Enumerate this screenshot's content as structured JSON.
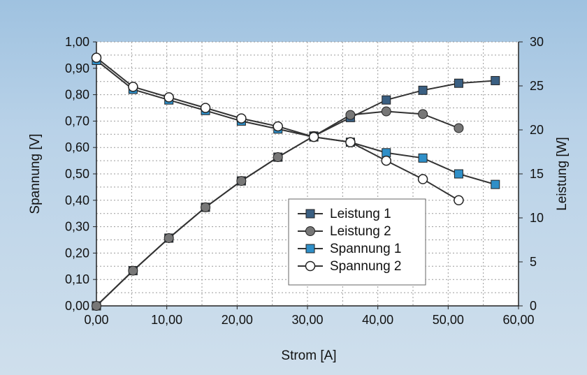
{
  "chart_data": {
    "type": "line",
    "xlabel": "Strom [A]",
    "ylabel": "Spannung [V]",
    "y2label": "Leistung [W]",
    "xlim": [
      0,
      60
    ],
    "ylim": [
      0,
      1.0
    ],
    "y2lim": [
      0,
      30
    ],
    "x_ticks": [
      "0,00",
      "10,00",
      "20,00",
      "30,00",
      "40,00",
      "50,00",
      "60,00"
    ],
    "y_ticks": [
      "0,00",
      "0,10",
      "0,20",
      "0,30",
      "0,40",
      "0,50",
      "0,60",
      "0,70",
      "0,80",
      "0,90",
      "1,00"
    ],
    "y2_ticks": [
      "0",
      "5",
      "10",
      "15",
      "20",
      "25",
      "30"
    ],
    "grid": true,
    "legend_position": "center-right",
    "series": [
      {
        "name": "Leistung 1",
        "axis": "right",
        "marker": "square",
        "color": "#3a5f82",
        "x": [
          0,
          5.2,
          10.3,
          15.5,
          20.6,
          25.8,
          30.9,
          36.1,
          41.2,
          46.4,
          51.5,
          56.7
        ],
        "y": [
          0,
          4.0,
          7.7,
          11.2,
          14.2,
          16.9,
          19.3,
          21.4,
          23.4,
          24.5,
          25.3,
          25.6
        ]
      },
      {
        "name": "Leistung 2",
        "axis": "right",
        "marker": "circle",
        "color": "#777777",
        "x": [
          0,
          5.2,
          10.3,
          15.5,
          20.6,
          25.8,
          30.9,
          36.1,
          41.2,
          46.4,
          51.5
        ],
        "y": [
          0,
          4.0,
          7.7,
          11.2,
          14.2,
          16.9,
          19.3,
          21.7,
          22.1,
          21.8,
          20.2
        ]
      },
      {
        "name": "Spannung 1",
        "axis": "left",
        "marker": "square",
        "color": "#2f8fc8",
        "x": [
          0,
          5.2,
          10.3,
          15.5,
          20.6,
          25.8,
          30.9,
          36.1,
          41.2,
          46.4,
          51.5,
          56.7
        ],
        "y": [
          0.93,
          0.82,
          0.78,
          0.74,
          0.7,
          0.67,
          0.64,
          0.62,
          0.58,
          0.56,
          0.5,
          0.46
        ]
      },
      {
        "name": "Spannung 2",
        "axis": "left",
        "marker": "circle-open",
        "color": "#ffffff",
        "x": [
          0,
          5.2,
          10.3,
          15.5,
          20.6,
          25.8,
          30.9,
          36.1,
          41.2,
          46.4,
          51.5
        ],
        "y": [
          0.94,
          0.83,
          0.79,
          0.75,
          0.71,
          0.68,
          0.64,
          0.62,
          0.55,
          0.48,
          0.4
        ]
      }
    ]
  }
}
